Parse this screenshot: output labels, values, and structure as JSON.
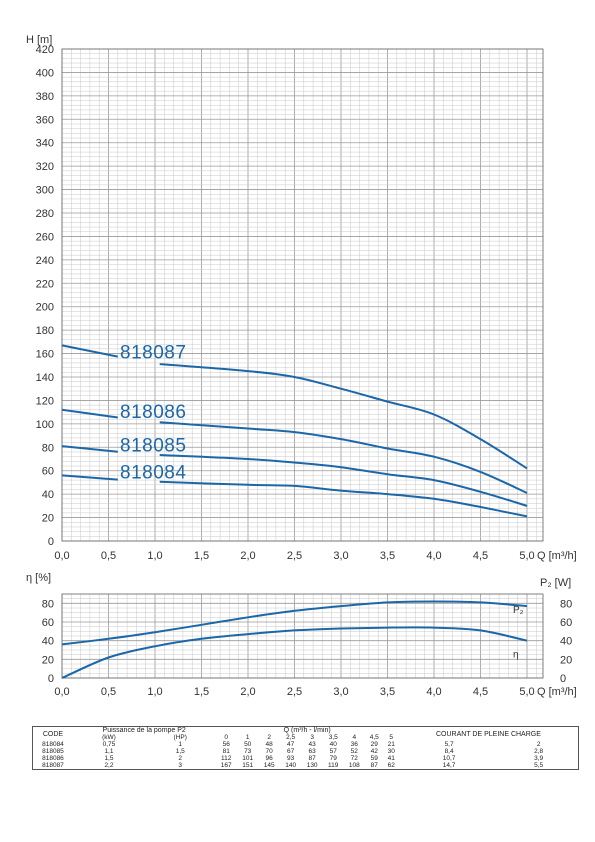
{
  "chart_data": [
    {
      "type": "line",
      "ylabel": "H [m]",
      "xlabel": "Q [m³/h]",
      "xlim": [
        0,
        5
      ],
      "ylim": [
        0,
        420
      ],
      "x_ticks": [
        "0,0",
        "0,5",
        "1,0",
        "1,5",
        "2,0",
        "2,5",
        "3,0",
        "3,5",
        "4,0",
        "4,5",
        "5,0"
      ],
      "y_ticks": [
        "0",
        "20",
        "40",
        "60",
        "80",
        "100",
        "120",
        "140",
        "160",
        "180",
        "200",
        "220",
        "240",
        "260",
        "280",
        "300",
        "320",
        "340",
        "360",
        "380",
        "400",
        "420"
      ],
      "grid": true,
      "line_color": "#1c67a8",
      "series": [
        {
          "name": "818087",
          "x": [
            0,
            1,
            2,
            2.5,
            3,
            3.5,
            4,
            4.5,
            5
          ],
          "values": [
            167,
            151,
            145,
            140,
            130,
            119,
            108,
            87,
            62
          ]
        },
        {
          "name": "818086",
          "x": [
            0,
            1,
            2,
            2.5,
            3,
            3.5,
            4,
            4.5,
            5
          ],
          "values": [
            112,
            101,
            96,
            93,
            87,
            79,
            72,
            59,
            41
          ]
        },
        {
          "name": "818085",
          "x": [
            0,
            1,
            2,
            2.5,
            3,
            3.5,
            4,
            4.5,
            5
          ],
          "values": [
            81,
            73,
            70,
            67,
            63,
            57,
            52,
            42,
            30
          ]
        },
        {
          "name": "818084",
          "x": [
            0,
            1,
            2,
            2.5,
            3,
            3.5,
            4,
            4.5,
            5
          ],
          "values": [
            56,
            50,
            48,
            47,
            43,
            40,
            36,
            29,
            21
          ]
        }
      ]
    },
    {
      "type": "line",
      "ylabel": "η [%]",
      "y2label": "P₂ [W]",
      "xlabel": "Q [m³/h]",
      "xlim": [
        0,
        5
      ],
      "ylim": [
        0,
        90
      ],
      "x_ticks": [
        "0,0",
        "0,5",
        "1,0",
        "1,5",
        "2,0",
        "2,5",
        "3,0",
        "3,5",
        "4,0",
        "4,5",
        "5,0"
      ],
      "y_ticks": [
        "0",
        "20",
        "40",
        "60",
        "80"
      ],
      "grid": true,
      "line_color": "#1c67a8",
      "series": [
        {
          "name": "P₂",
          "x": [
            0,
            0.5,
            1,
            1.5,
            2,
            2.5,
            3,
            3.5,
            4,
            4.5,
            5
          ],
          "values": [
            36,
            42,
            49,
            57,
            65,
            72,
            77,
            81,
            82,
            81,
            77
          ]
        },
        {
          "name": "η",
          "x": [
            0,
            0.5,
            1,
            1.5,
            2,
            2.5,
            3,
            3.5,
            4,
            4.5,
            5
          ],
          "values": [
            0,
            22,
            34,
            42,
            47,
            51,
            53,
            54,
            54,
            51,
            40
          ]
        }
      ]
    }
  ],
  "table": {
    "headers": {
      "code": "CODE",
      "power": "Puissance de la pompe P2",
      "kw": "(kW)",
      "hp": "(HP)",
      "flow": "Q (m³/h - l/min)",
      "flow_cols": [
        "0",
        "1",
        "2",
        "2,5",
        "3",
        "3,5",
        "4",
        "4,5",
        "5"
      ],
      "current": "COURANT DE PLEINE CHARGE"
    },
    "rows": [
      {
        "code": "818084",
        "kw": "0,75",
        "hp": "1",
        "h": [
          "56",
          "50",
          "48",
          "47",
          "43",
          "40",
          "36",
          "29",
          "21"
        ],
        "c1": "5,7",
        "c2": "2"
      },
      {
        "code": "818085",
        "kw": "1,1",
        "hp": "1,5",
        "h": [
          "81",
          "73",
          "70",
          "67",
          "63",
          "57",
          "52",
          "42",
          "30"
        ],
        "c1": "8,4",
        "c2": "2,8"
      },
      {
        "code": "818086",
        "kw": "1,5",
        "hp": "2",
        "h": [
          "112",
          "101",
          "96",
          "93",
          "87",
          "79",
          "72",
          "59",
          "41"
        ],
        "c1": "10,7",
        "c2": "3,9"
      },
      {
        "code": "818087",
        "kw": "2,2",
        "hp": "3",
        "h": [
          "167",
          "151",
          "145",
          "140",
          "130",
          "119",
          "108",
          "87",
          "62"
        ],
        "c1": "14,7",
        "c2": "5,5"
      }
    ]
  }
}
